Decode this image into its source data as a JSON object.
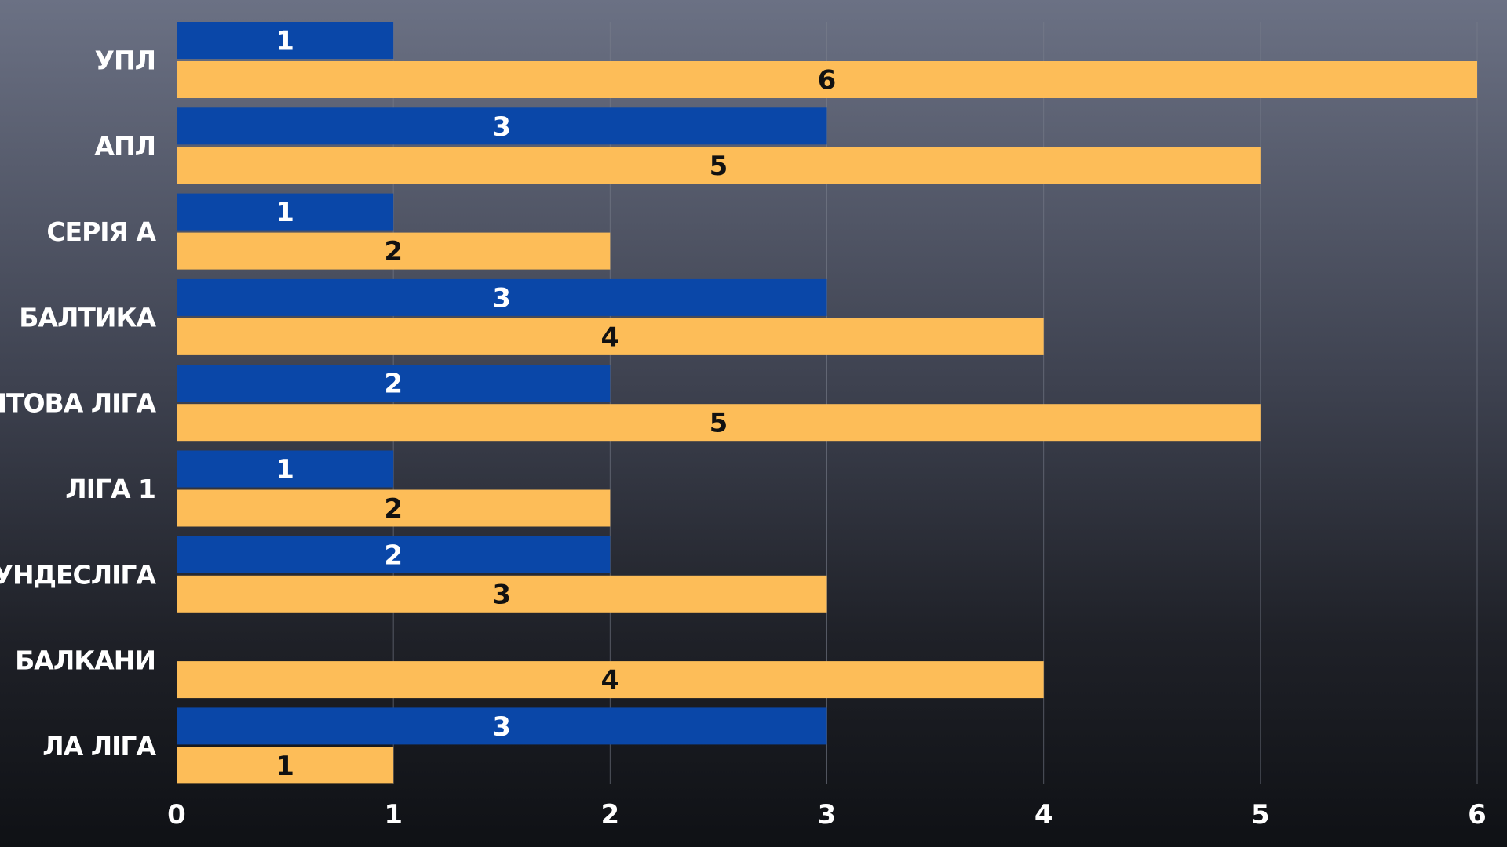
{
  "colors": {
    "series_blue": "#0a47a8",
    "series_orange": "#fdbd58",
    "label_on_blue": "#ffffff",
    "label_on_orange": "#111111",
    "grid": "#7a7f8c"
  },
  "chart_data": {
    "type": "bar",
    "orientation": "horizontal",
    "title": "",
    "xlabel": "",
    "ylabel": "",
    "xlim": [
      0,
      6
    ],
    "x_ticks": [
      "0",
      "1",
      "2",
      "3",
      "4",
      "5",
      "6"
    ],
    "grid": "vertical",
    "legend": "none",
    "categories": [
      "УПЛ",
      "АПЛ",
      "СЕРІЯ А",
      "БАЛТИКА",
      "СВІТОВА ЛІГА",
      "ЛІГА 1",
      "БУНДЕСЛІГА",
      "БАЛКАНИ",
      "ЛА ЛІГА"
    ],
    "series": [
      {
        "values": [
          1,
          3,
          1,
          3,
          2,
          1,
          2,
          null,
          3
        ]
      },
      {
        "values": [
          6,
          5,
          2,
          4,
          5,
          2,
          3,
          4,
          1
        ]
      }
    ],
    "data_labels": true
  }
}
